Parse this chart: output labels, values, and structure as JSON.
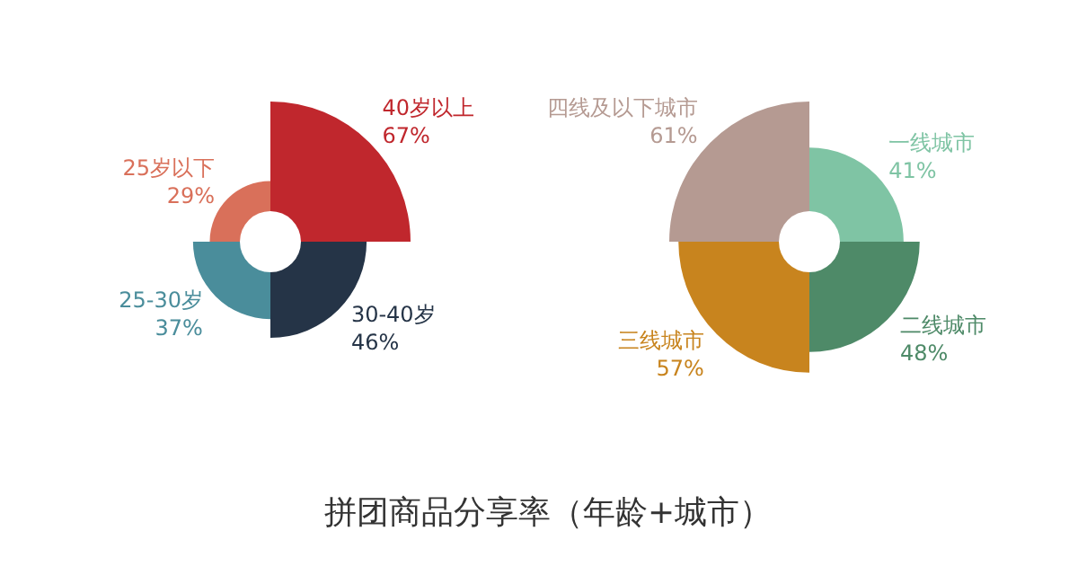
{
  "chart_data": [
    {
      "type": "other",
      "title": "拼团商品分享率（年龄+城市）",
      "categories": [
        "40岁以上",
        "30-40岁",
        "25-30岁",
        "25岁以下"
      ],
      "values": [
        67,
        46,
        37,
        29
      ],
      "value_labels": [
        "67%",
        "46%",
        "37%",
        "29%"
      ],
      "colors": [
        "#c0272d",
        "#253447",
        "#4a8d9b",
        "#d9705a"
      ]
    },
    {
      "type": "other",
      "categories": [
        "一线城市",
        "二线城市",
        "三线城市",
        "四线及以下城市"
      ],
      "values": [
        41,
        48,
        57,
        61
      ],
      "value_labels": [
        "41%",
        "48%",
        "57%",
        "61%"
      ],
      "colors": [
        "#7fc4a4",
        "#4e8a68",
        "#c8841e",
        "#b59a92"
      ]
    }
  ]
}
